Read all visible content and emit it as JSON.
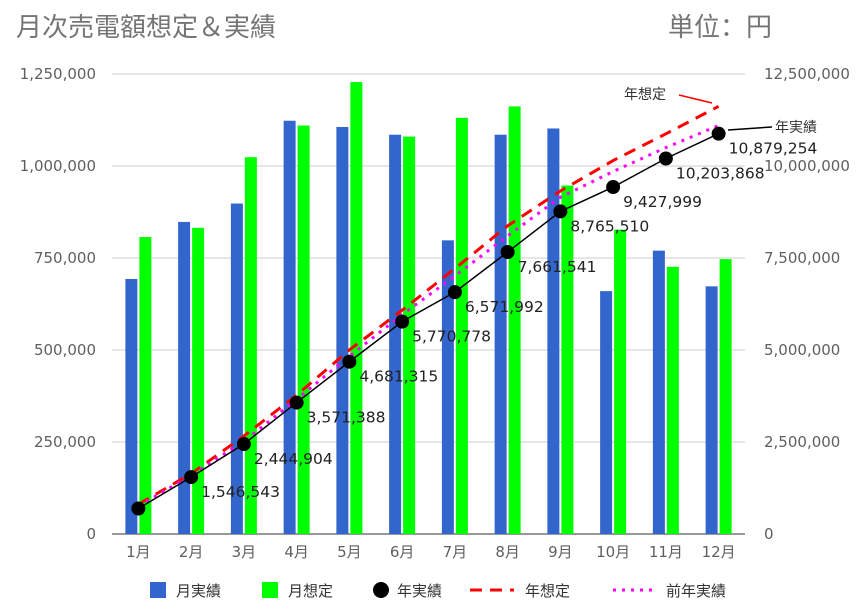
{
  "chart_data": {
    "type": "bar",
    "title": "月次売電額想定＆実績",
    "unit_label": "単位：円",
    "categories": [
      "1月",
      "2月",
      "3月",
      "4月",
      "5月",
      "6月",
      "7月",
      "8月",
      "9月",
      "10月",
      "11月",
      "12月"
    ],
    "y_left": {
      "min": 0,
      "max": 1250000,
      "ticks": [
        0,
        250000,
        500000,
        750000,
        1000000,
        1250000
      ],
      "tick_labels": [
        "0",
        "250,000",
        "500,000",
        "750,000",
        "1,000,000",
        "1,250,000"
      ]
    },
    "y_right": {
      "min": 0,
      "max": 12500000,
      "ticks": [
        0,
        2500000,
        5000000,
        7500000,
        10000000,
        12500000
      ],
      "tick_labels": [
        "0",
        "2,500,000",
        "5,000,000",
        "7,500,000",
        "10,000,000",
        "12,500,000"
      ]
    },
    "series": [
      {
        "name": "月実績",
        "kind": "bar",
        "axis": "left",
        "color": "#3366cc",
        "values": [
          693000,
          848000,
          898000,
          1123000,
          1106000,
          1085000,
          798000,
          1085000,
          1102000,
          660000,
          770000,
          673000
        ]
      },
      {
        "name": "月想定",
        "kind": "bar",
        "axis": "left",
        "color": "#00ff00",
        "values": [
          807000,
          832000,
          1024000,
          1110000,
          1228000,
          1080000,
          1131000,
          1162000,
          947000,
          827000,
          726000,
          747000
        ]
      },
      {
        "name": "年実績",
        "kind": "line-marker",
        "axis": "right",
        "color": "#000000",
        "values": [
          693000,
          1546543,
          2444904,
          3571388,
          4681315,
          5770778,
          6571992,
          7661541,
          8765510,
          9427999,
          10203868,
          10879254
        ],
        "point_labels": [
          "",
          "1,546,543",
          "2,444,904",
          "3,571,388",
          "4,681,315",
          "5,770,778",
          "6,571,992",
          "7,661,541",
          "8,765,510",
          "9,427,999",
          "10,203,868",
          "10,879,254"
        ]
      },
      {
        "name": "年想定",
        "kind": "dashed-line",
        "axis": "right",
        "color": "#ff0000",
        "values": [
          807000,
          1639000,
          2663000,
          3773000,
          5001000,
          6081000,
          7212000,
          8374000,
          9321000,
          10148000,
          10874000,
          11621000
        ]
      },
      {
        "name": "前年実績",
        "kind": "dotted-line",
        "axis": "right",
        "color": "#ff00ff",
        "values": [
          760000,
          1590000,
          2520000,
          3660000,
          4830000,
          5960000,
          7010000,
          8100000,
          9150000,
          9850000,
          10500000,
          11100000
        ]
      }
    ],
    "annotations": {
      "nenso": "年想定",
      "nenjisseki": "年実績"
    },
    "legend": [
      "月実績",
      "月想定",
      "年実績",
      "年想定",
      "前年実績"
    ],
    "legend_position": "bottom"
  }
}
